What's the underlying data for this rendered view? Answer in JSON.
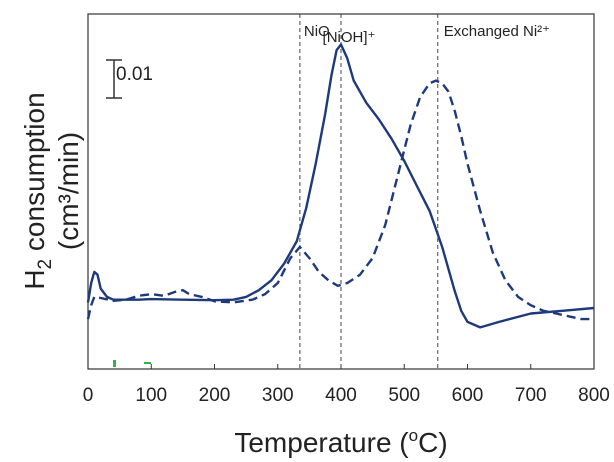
{
  "chart_data": {
    "type": "line",
    "title": "",
    "xlabel": "Temperature (°C)",
    "xlabel_parts": {
      "prefix": "Temperature (",
      "sup": "o",
      "suffix": "C)"
    },
    "ylabel": "H₂ consumption (cm³/min)",
    "ylabel_parts": {
      "main": "H",
      "sub": "2",
      "rest": " consumption",
      "line2": "(cm³/min)"
    },
    "xlim": [
      0,
      800
    ],
    "xticks": [
      0,
      100,
      200,
      300,
      400,
      500,
      600,
      700,
      800
    ],
    "y_ticks_shown": false,
    "grid": false,
    "legend": "none",
    "scale_bar": {
      "label": "0.01",
      "value": 0.01
    },
    "annotations": [
      {
        "text": "NiO",
        "x": 335
      },
      {
        "text": "[NiOH]⁺",
        "x": 400
      },
      {
        "text": "Exchanged Ni²⁺",
        "x": 553
      }
    ],
    "vlines": [
      335,
      400,
      553
    ],
    "series": [
      {
        "style": "solid",
        "color": "#1f3a7a",
        "x": [
          0,
          5,
          10,
          15,
          20,
          30,
          40,
          50,
          60,
          80,
          100,
          150,
          200,
          230,
          250,
          270,
          290,
          310,
          330,
          345,
          360,
          375,
          385,
          393,
          400,
          410,
          420,
          440,
          460,
          480,
          500,
          520,
          540,
          560,
          570,
          580,
          590,
          600,
          620,
          650,
          700,
          750,
          800
        ],
        "y": [
          0.0,
          0.0035,
          0.0055,
          0.005,
          0.0025,
          0.001,
          0.0005,
          0.0005,
          0.0005,
          0.0005,
          0.0006,
          0.0005,
          0.0004,
          0.0005,
          0.001,
          0.0022,
          0.004,
          0.007,
          0.011,
          0.017,
          0.025,
          0.034,
          0.041,
          0.0455,
          0.0465,
          0.044,
          0.04,
          0.036,
          0.033,
          0.0295,
          0.0255,
          0.021,
          0.0165,
          0.01,
          0.006,
          0.002,
          -0.0015,
          -0.0035,
          -0.0045,
          -0.0035,
          -0.002,
          -0.0015,
          -0.001
        ]
      },
      {
        "style": "dashed",
        "color": "#1f3a7a",
        "x": [
          0,
          5,
          10,
          20,
          40,
          60,
          80,
          100,
          120,
          140,
          150,
          160,
          180,
          200,
          230,
          260,
          280,
          300,
          320,
          335,
          350,
          365,
          380,
          395,
          410,
          430,
          450,
          470,
          490,
          510,
          525,
          540,
          550,
          560,
          570,
          580,
          590,
          600,
          620,
          640,
          660,
          680,
          700,
          720,
          740,
          760,
          780,
          800
        ],
        "y": [
          -0.003,
          -0.0005,
          0.001,
          0.0008,
          0.0003,
          0.0005,
          0.0012,
          0.0015,
          0.0012,
          0.002,
          0.0022,
          0.0015,
          0.001,
          0.0002,
          0.0,
          0.0005,
          0.0015,
          0.0035,
          0.008,
          0.01,
          0.008,
          0.0055,
          0.004,
          0.003,
          0.0035,
          0.005,
          0.008,
          0.014,
          0.023,
          0.032,
          0.037,
          0.0395,
          0.04,
          0.0395,
          0.038,
          0.0345,
          0.03,
          0.025,
          0.0165,
          0.009,
          0.004,
          0.001,
          -0.0005,
          -0.0015,
          -0.002,
          -0.0025,
          -0.003,
          -0.003
        ]
      }
    ]
  }
}
